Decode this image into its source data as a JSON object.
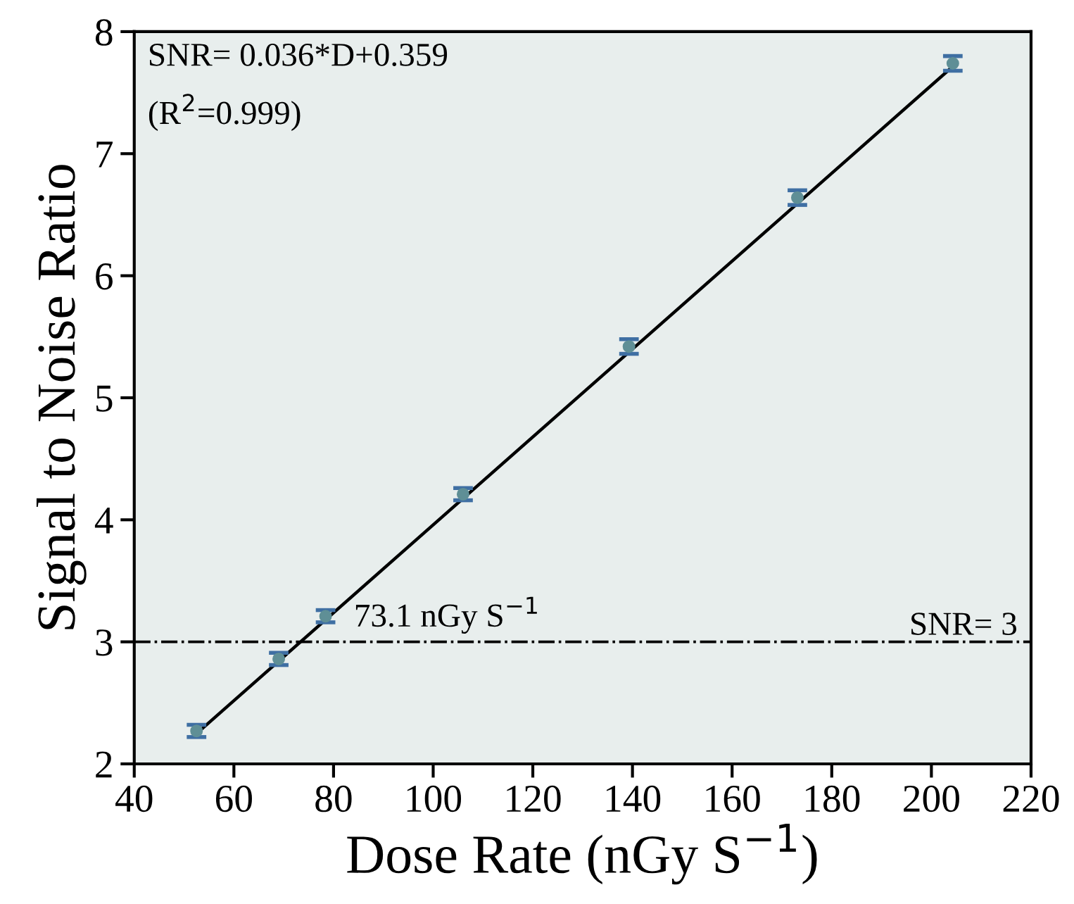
{
  "chart_data": {
    "type": "scatter",
    "xlabel": "Dose Rate (nGy S$^{−1}$)",
    "ylabel": "Signal to Noise Ratio",
    "x": [
      52.5,
      69.0,
      78.4,
      106.0,
      139.3,
      173.1,
      204.3
    ],
    "series": [
      {
        "color": "#5f8f96",
        "values": [
          2.27,
          2.86,
          3.21,
          4.21,
          5.42,
          6.64,
          7.74
        ],
        "errors": [
          0.05,
          0.05,
          0.05,
          0.05,
          0.06,
          0.06,
          0.06
        ]
      },
      {
        "type": "line",
        "marker": "none",
        "color": "#000000",
        "x": [
          52,
          205
        ],
        "values": [
          2.23,
          7.74
        ]
      }
    ],
    "xlim": [
      40,
      220
    ],
    "ylim": [
      2,
      8
    ],
    "xticks": [
      40,
      60,
      80,
      100,
      120,
      140,
      160,
      180,
      200,
      220
    ],
    "yticks": [
      2,
      3,
      4,
      5,
      6,
      7,
      8
    ],
    "ref_lines": [
      {
        "axis": "y",
        "value": 3,
        "label": "SNR= 3",
        "line_style": "dashdot",
        "color": "#000000"
      }
    ],
    "annotations": [
      "SNR= 0.036*D+0.359",
      "(R$^{2}$=0.999)",
      {
        "text": "73.1 nGy S$^{−1}$",
        "x": 73.1,
        "y": 3
      }
    ],
    "marker": "circle",
    "grid": false,
    "legend": false
  }
}
